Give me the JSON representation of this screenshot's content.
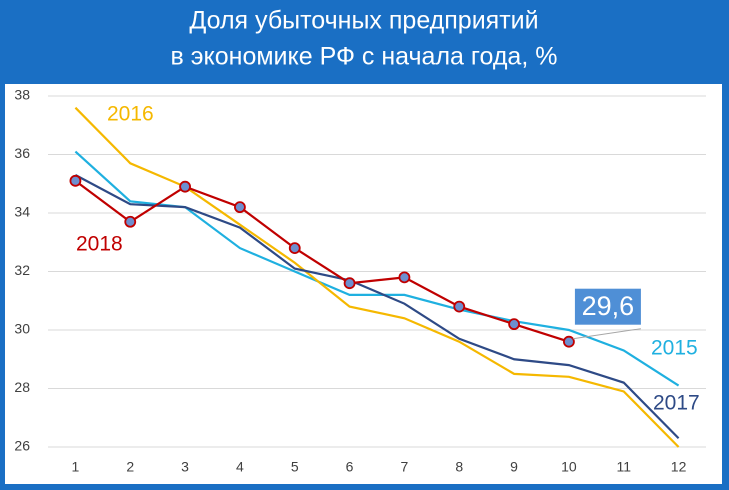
{
  "chart_data": {
    "type": "line",
    "title": [
      "Доля убыточных предприятий",
      "в экономике РФ с начала года, %"
    ],
    "x": [
      1,
      2,
      3,
      4,
      5,
      6,
      7,
      8,
      9,
      10,
      11,
      12
    ],
    "xlim": [
      0.5,
      12.5
    ],
    "xticks": [
      1,
      2,
      3,
      4,
      5,
      6,
      7,
      8,
      9,
      10,
      11,
      12
    ],
    "ylim": [
      26,
      38
    ],
    "yticks": [
      26,
      28,
      30,
      32,
      34,
      36,
      38
    ],
    "grid": true,
    "series": [
      {
        "name": "2015",
        "color": "#1fb0e0",
        "values": [
          36.1,
          34.4,
          34.2,
          32.8,
          32.0,
          31.2,
          31.2,
          30.7,
          30.3,
          30.0,
          29.3,
          28.1
        ]
      },
      {
        "name": "2016",
        "color": "#f5b800",
        "values": [
          37.6,
          35.7,
          34.9,
          33.6,
          32.3,
          30.8,
          30.4,
          29.6,
          28.5,
          28.4,
          27.9,
          26.0
        ]
      },
      {
        "name": "2017",
        "color": "#2e4a86",
        "values": [
          35.3,
          34.3,
          34.2,
          33.5,
          32.1,
          31.7,
          30.9,
          29.7,
          29.0,
          28.8,
          28.2,
          26.3
        ]
      },
      {
        "name": "2018",
        "color": "#c00000",
        "markers": true,
        "values": [
          35.1,
          33.7,
          34.9,
          34.2,
          32.8,
          31.6,
          31.8,
          30.8,
          30.2,
          29.6,
          null,
          null
        ],
        "value_labels": [
          null,
          null,
          null,
          null,
          null,
          null,
          null,
          null,
          null,
          "29,6",
          null,
          null
        ]
      }
    ]
  }
}
